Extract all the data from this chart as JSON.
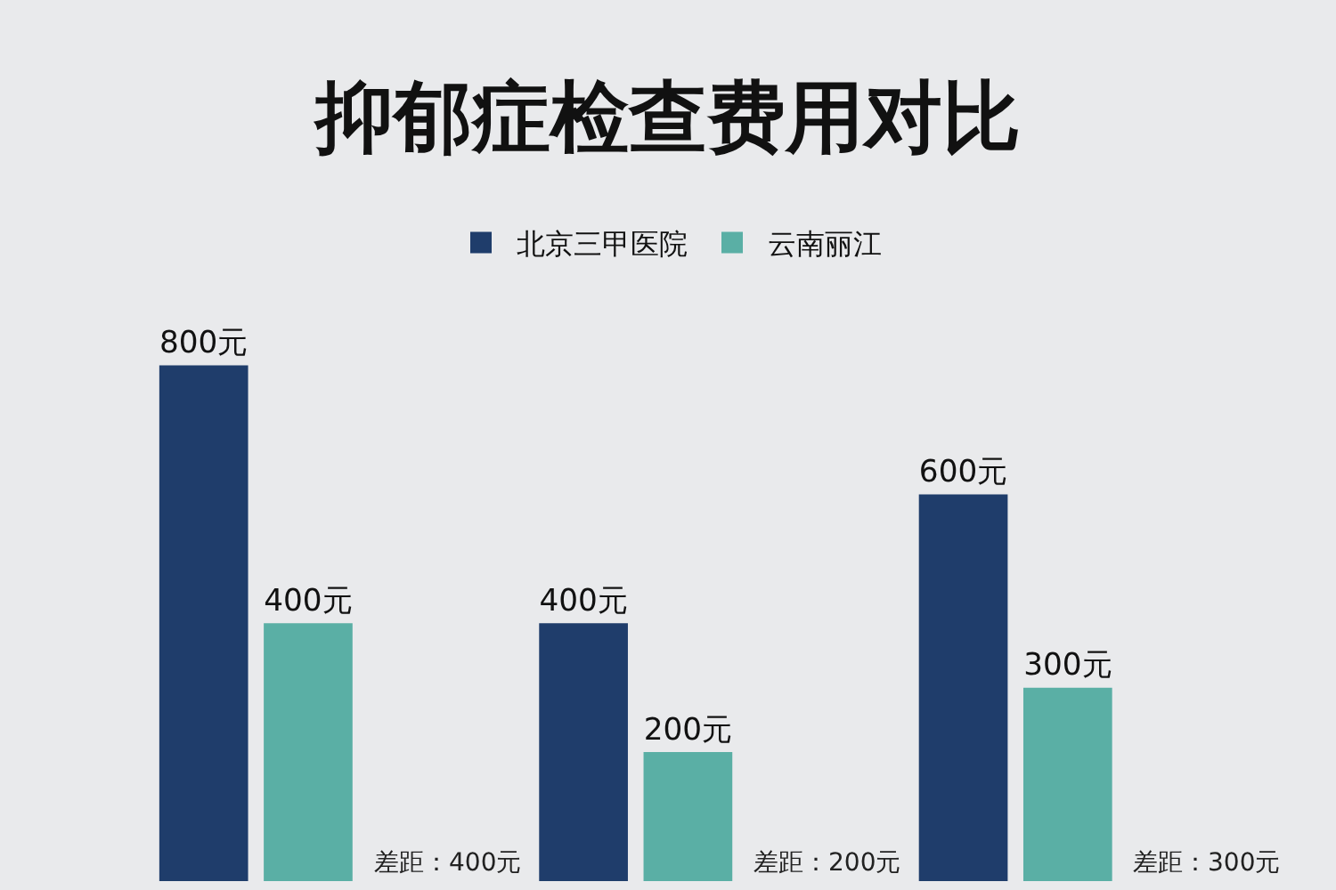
{
  "chart_data": {
    "type": "bar",
    "title": "抑郁症检查费用对比",
    "categories": [
      null,
      null,
      null
    ],
    "series": [
      {
        "name": "北京三甲医院",
        "color": "#1f3d6b",
        "values": [
          800,
          400,
          600
        ],
        "value_labels": [
          "800元",
          "400元",
          "600元"
        ]
      },
      {
        "name": "云南丽江",
        "color": "#5aafa5",
        "values": [
          400,
          200,
          300
        ],
        "value_labels": [
          "400元",
          "200元",
          "300元"
        ]
      }
    ],
    "annotations": [
      "差距：400元",
      "差距：200元",
      "差距：300元"
    ],
    "legend": "top"
  }
}
